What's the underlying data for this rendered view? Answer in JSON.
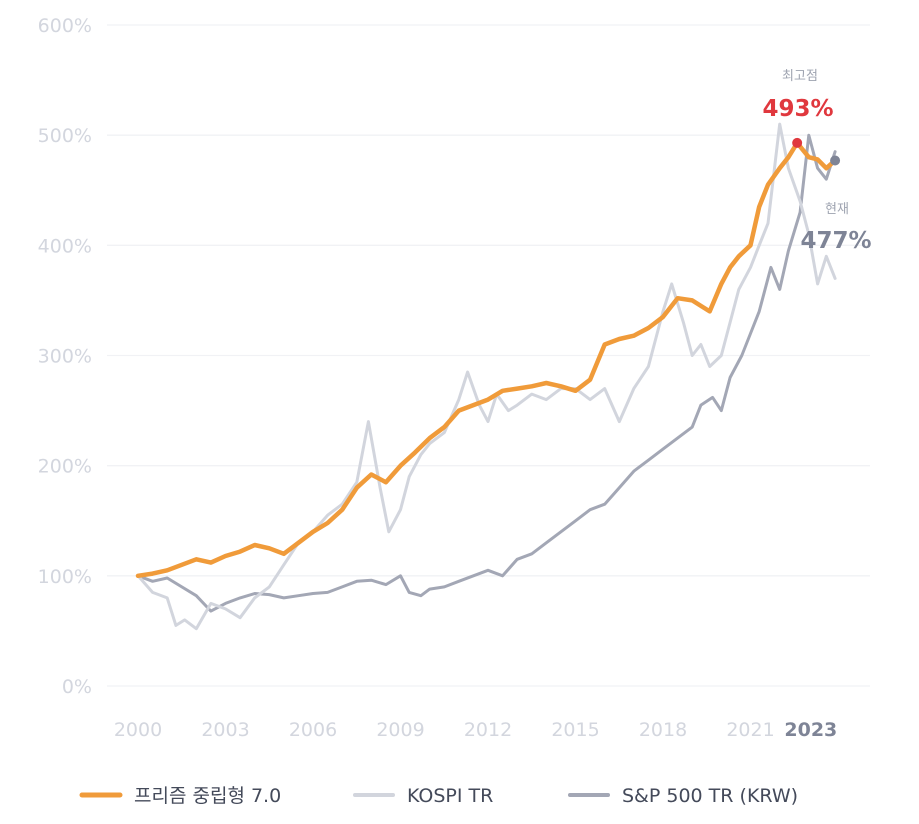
{
  "chart_data": {
    "type": "line",
    "title": "",
    "xlabel": "",
    "ylabel": "",
    "xlim": [
      2000,
      2024
    ],
    "ylim": [
      0,
      600
    ],
    "y_unit": "%",
    "grid": true,
    "legend_position": "bottom",
    "y_ticks": [
      "0%",
      "100%",
      "200%",
      "300%",
      "400%",
      "500%",
      "600%"
    ],
    "x_ticks": [
      "2000",
      "2003",
      "2006",
      "2009",
      "2012",
      "2015",
      "2018",
      "2021"
    ],
    "x_tick_current": "2023",
    "series": [
      {
        "name": "S&P 500 TR (KRW)",
        "color": "#a3a7b5",
        "x": [
          2000,
          2000.5,
          2001,
          2001.5,
          2002,
          2002.5,
          2003,
          2003.5,
          2004,
          2004.5,
          2005,
          2005.5,
          2006,
          2006.5,
          2007,
          2007.5,
          2008,
          2008.5,
          2009,
          2009.3,
          2009.7,
          2010,
          2010.5,
          2011,
          2011.5,
          2012,
          2012.5,
          2013,
          2013.5,
          2014,
          2014.5,
          2015,
          2015.5,
          2016,
          2016.5,
          2017,
          2017.5,
          2018,
          2018.5,
          2019,
          2019.3,
          2019.7,
          2020,
          2020.3,
          2020.7,
          2021,
          2021.3,
          2021.7,
          2022,
          2022.3,
          2022.7,
          2023,
          2023.3,
          2023.6,
          2023.9
        ],
        "values": [
          100,
          95,
          98,
          90,
          82,
          68,
          75,
          80,
          84,
          83,
          80,
          82,
          84,
          85,
          90,
          95,
          96,
          92,
          100,
          85,
          82,
          88,
          90,
          95,
          100,
          105,
          100,
          115,
          120,
          130,
          140,
          150,
          160,
          165,
          180,
          195,
          205,
          215,
          225,
          235,
          255,
          262,
          250,
          280,
          300,
          320,
          340,
          380,
          360,
          395,
          430,
          500,
          470,
          460,
          485
        ]
      },
      {
        "name": "KOSPI TR",
        "color": "#d2d5dd",
        "x": [
          2000,
          2000.5,
          2001,
          2001.3,
          2001.6,
          2002,
          2002.5,
          2003,
          2003.5,
          2004,
          2004.5,
          2005,
          2005.5,
          2006,
          2006.5,
          2007,
          2007.5,
          2007.9,
          2008.3,
          2008.6,
          2009,
          2009.3,
          2009.7,
          2010,
          2010.5,
          2011,
          2011.3,
          2011.7,
          2012,
          2012.3,
          2012.7,
          2013,
          2013.5,
          2014,
          2014.5,
          2015,
          2015.5,
          2016,
          2016.5,
          2017,
          2017.5,
          2018,
          2018.3,
          2018.7,
          2019,
          2019.3,
          2019.6,
          2020,
          2020.3,
          2020.6,
          2021,
          2021.3,
          2021.6,
          2022,
          2022.3,
          2022.7,
          2023,
          2023.3,
          2023.6,
          2023.9
        ],
        "values": [
          100,
          85,
          80,
          55,
          60,
          52,
          75,
          70,
          62,
          80,
          90,
          110,
          130,
          140,
          155,
          165,
          185,
          240,
          180,
          140,
          160,
          190,
          210,
          220,
          230,
          260,
          285,
          255,
          240,
          265,
          250,
          255,
          265,
          260,
          270,
          270,
          260,
          270,
          240,
          270,
          290,
          340,
          365,
          330,
          300,
          310,
          290,
          300,
          330,
          360,
          380,
          400,
          420,
          510,
          470,
          440,
          410,
          365,
          390,
          370
        ]
      },
      {
        "name": "프리즘 중립형 7.0",
        "color": "#f09b3a",
        "x": [
          2000,
          2000.5,
          2001,
          2001.5,
          2002,
          2002.5,
          2003,
          2003.5,
          2004,
          2004.5,
          2005,
          2005.5,
          2006,
          2006.5,
          2007,
          2007.5,
          2008,
          2008.5,
          2009,
          2009.5,
          2010,
          2010.5,
          2011,
          2011.5,
          2012,
          2012.5,
          2013,
          2013.5,
          2014,
          2014.5,
          2015,
          2015.5,
          2016,
          2016.5,
          2017,
          2017.5,
          2018,
          2018.5,
          2019,
          2019.3,
          2019.6,
          2020,
          2020.3,
          2020.6,
          2021,
          2021.3,
          2021.6,
          2022,
          2022.3,
          2022.6,
          2023,
          2023.3,
          2023.6,
          2023.9
        ],
        "values": [
          100,
          102,
          105,
          110,
          115,
          112,
          118,
          122,
          128,
          125,
          120,
          130,
          140,
          148,
          160,
          180,
          192,
          185,
          200,
          212,
          225,
          235,
          250,
          255,
          260,
          268,
          270,
          272,
          275,
          272,
          268,
          278,
          310,
          315,
          318,
          325,
          335,
          352,
          350,
          345,
          340,
          365,
          380,
          390,
          400,
          435,
          455,
          470,
          480,
          493,
          480,
          478,
          470,
          477
        ]
      }
    ],
    "annotations": {
      "peak": {
        "label": "최고점",
        "value_text": "493%",
        "x": 2022.6,
        "value": 493,
        "color": "#e0383e"
      },
      "current": {
        "label": "현재",
        "value_text": "477%",
        "x": 2023.9,
        "value": 477,
        "color": "#7e8496"
      }
    }
  }
}
